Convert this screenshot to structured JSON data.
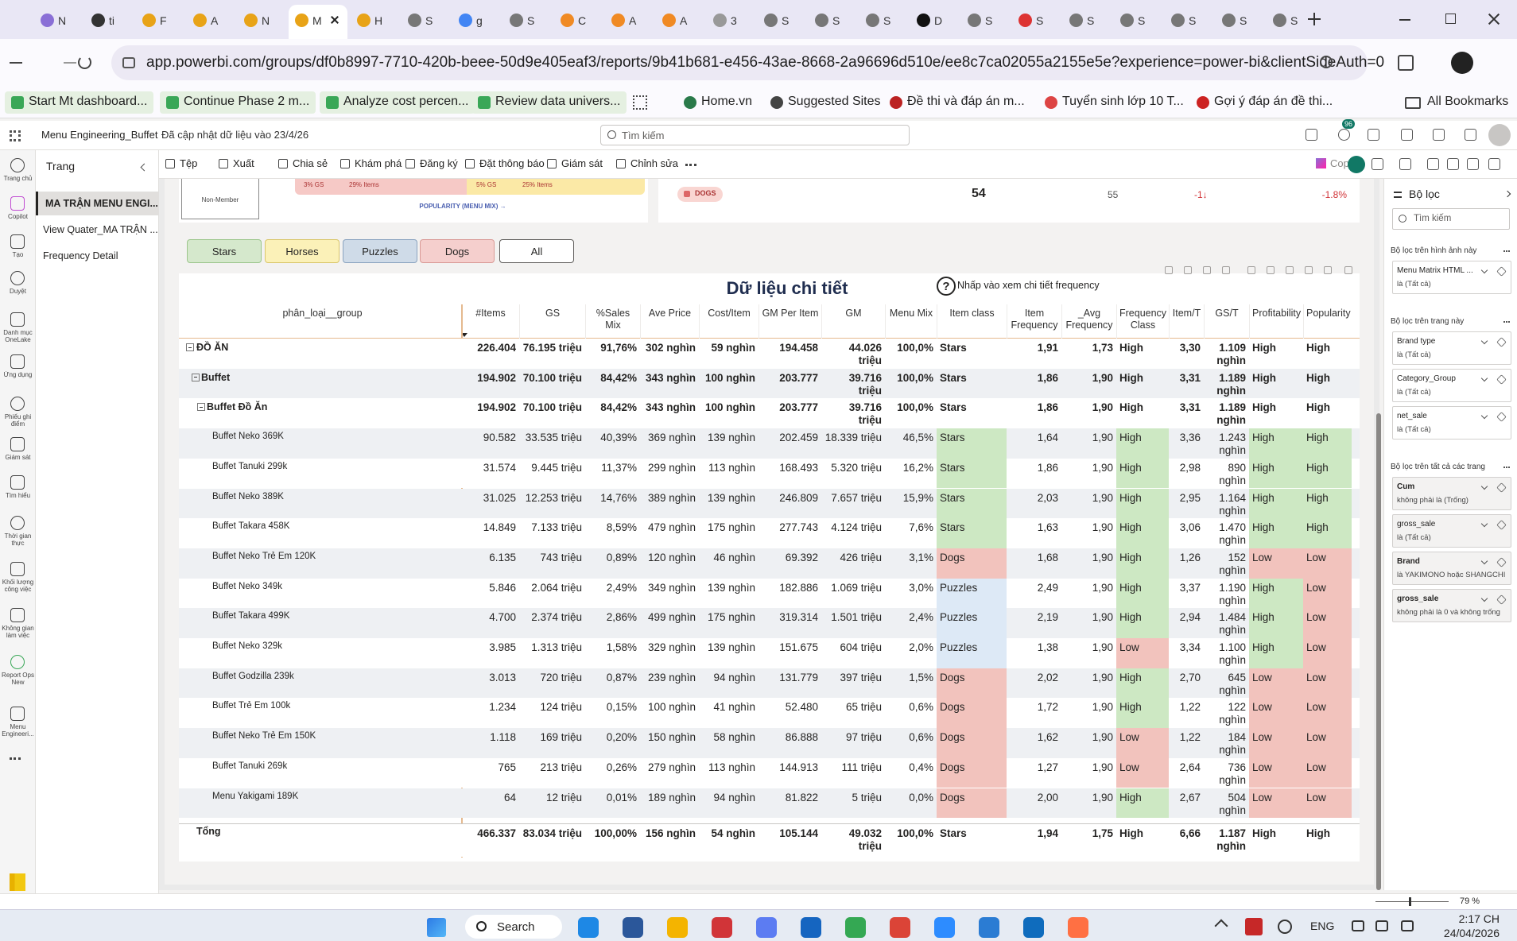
{
  "browser": {
    "tabs": [
      "N",
      "ti",
      "F",
      "A",
      "N",
      "M",
      "H",
      "S",
      "g",
      "S",
      "C",
      "A",
      "A",
      "3",
      "S",
      "S",
      "S",
      "D",
      "S",
      "S",
      "S",
      "S",
      "S",
      "S",
      "S"
    ],
    "url": "app.powerbi.com/groups/df0b8997-7710-420b-beee-50d9e405eaf3/reports/9b41b681-e456-43ae-8668-2a96696d510e/ee8c7ca02055a2155e5e?experience=power-bi&clientSideAuth=0",
    "bookmarks": [
      "Start Mt dashboard...",
      "Continue Phase 2 m...",
      "Analyze cost percen...",
      "Review data univers...",
      "Home.vn",
      "Suggested Sites",
      "Đề thi và đáp án m...",
      "Tuyển sinh lớp 10 T...",
      "Gợi ý đáp án đề thi..."
    ],
    "all_bookmarks": "All Bookmarks"
  },
  "app": {
    "report_name": "Menu Engineering_Buffet",
    "updated": "Đã cập nhật dữ liệu vào 23/4/26",
    "search": "Tìm kiếm",
    "notification_count": 96,
    "rail": [
      "Trang chủ",
      "Copilot",
      "Tạo",
      "Duyệt",
      "Danh mục OneLake",
      "Ứng dụng",
      "Phiếu ghi điểm",
      "Giám sát",
      "Tìm hiểu",
      "Thời gian thực",
      "Khối lượng công việc",
      "Không gian làm việc",
      "Report Ops New",
      "Menu Engineeri..."
    ],
    "product": "Power BI",
    "pages_title": "Trang",
    "pages": [
      "MA TRẬN MENU ENGI...",
      "View Quater_MA TRẬN ...",
      "Frequency Detail"
    ],
    "toolbar": [
      "Tệp",
      "Xuất",
      "Chia sẻ",
      "Khám phá",
      "Đăng ký",
      "Đặt thông báo",
      "Giám sát",
      "Chỉnh sửa"
    ],
    "copilot": "Copilot"
  },
  "visual_top": {
    "member": "Non-Member",
    "labels": [
      "3% GS",
      "29% Items",
      "5% GS",
      "25% Items"
    ],
    "axis": "POPULARITY (MENU MIX) →",
    "kpi": {
      "label": "DOGS",
      "value": 54,
      "previous": 55,
      "delta": "-1↓",
      "percent": "-1.8%"
    }
  },
  "buttons": [
    "Stars",
    "Horses",
    "Puzzles",
    "Dogs",
    "All"
  ],
  "table": {
    "title": "Dữ liệu chi tiết",
    "help_icon": "?",
    "hint": "Nhấp vào xem chi tiết frequency",
    "columns": [
      "phân_loại__group",
      "#Items",
      "GS",
      "%Sales Mix",
      "Ave Price",
      "Cost/Item",
      "GM Per Item",
      "GM",
      "Menu Mix",
      "Item class",
      "Item Frequency",
      "_Avg Frequency",
      "Frequency Class",
      "Item/T",
      "GS/T",
      "Profitability",
      "Popularity"
    ],
    "cell_colors": {
      "Stars": "#cde8c3",
      "Dogs": "#f2c3bd",
      "Puzzles": "#dde9f6",
      "High": "#cde8c3",
      "Low": "#f2c3bd"
    },
    "rows": [
      {
        "label": "ĐỒ ĂN",
        "level": 0,
        "cells": [
          "226.404",
          "76.195 triệu",
          "91,76%",
          "302 nghìn",
          "59 nghìn",
          "194.458",
          "44.026 triệu",
          "100,0%",
          "Stars",
          "1,91",
          "1,73",
          "High",
          "3,30",
          "1.109 nghìn",
          "High",
          "High"
        ]
      },
      {
        "label": "Buffet",
        "level": 1,
        "cells": [
          "194.902",
          "70.100 triệu",
          "84,42%",
          "343 nghìn",
          "100 nghìn",
          "203.777",
          "39.716 triệu",
          "100,0%",
          "Stars",
          "1,86",
          "1,90",
          "High",
          "3,31",
          "1.189 nghìn",
          "High",
          "High"
        ]
      },
      {
        "label": "Buffet Đồ Ăn",
        "level": 2,
        "cells": [
          "194.902",
          "70.100 triệu",
          "84,42%",
          "343 nghìn",
          "100 nghìn",
          "203.777",
          "39.716 triệu",
          "100,0%",
          "Stars",
          "1,86",
          "1,90",
          "High",
          "3,31",
          "1.189 nghìn",
          "High",
          "High"
        ]
      },
      {
        "label": "Buffet Neko 369K",
        "level": 3,
        "cells": [
          "90.582",
          "33.535 triệu",
          "40,39%",
          "369 nghìn",
          "139 nghìn",
          "202.459",
          "18.339 triệu",
          "46,5%",
          "Stars",
          "1,64",
          "1,90",
          "High",
          "3,36",
          "1.243 nghìn",
          "High",
          "High"
        ]
      },
      {
        "label": "Buffet Tanuki 299k",
        "level": 3,
        "cells": [
          "31.574",
          "9.445 triệu",
          "11,37%",
          "299 nghìn",
          "113 nghìn",
          "168.493",
          "5.320 triệu",
          "16,2%",
          "Stars",
          "1,86",
          "1,90",
          "High",
          "2,98",
          "890 nghìn",
          "High",
          "High"
        ]
      },
      {
        "label": "Buffet Neko 389K",
        "level": 3,
        "cells": [
          "31.025",
          "12.253 triệu",
          "14,76%",
          "389 nghìn",
          "139 nghìn",
          "246.809",
          "7.657 triệu",
          "15,9%",
          "Stars",
          "2,03",
          "1,90",
          "High",
          "2,95",
          "1.164 nghìn",
          "High",
          "High"
        ]
      },
      {
        "label": "Buffet Takara 458K",
        "level": 3,
        "cells": [
          "14.849",
          "7.133 triệu",
          "8,59%",
          "479 nghìn",
          "175 nghìn",
          "277.743",
          "4.124 triệu",
          "7,6%",
          "Stars",
          "1,63",
          "1,90",
          "High",
          "3,06",
          "1.470 nghìn",
          "High",
          "High"
        ]
      },
      {
        "label": "Buffet Neko Trẻ Em 120K",
        "level": 3,
        "cells": [
          "6.135",
          "743 triệu",
          "0,89%",
          "120 nghìn",
          "46 nghìn",
          "69.392",
          "426 triệu",
          "3,1%",
          "Dogs",
          "1,68",
          "1,90",
          "High",
          "1,26",
          "152 nghìn",
          "Low",
          "Low"
        ]
      },
      {
        "label": "Buffet Neko 349k",
        "level": 3,
        "cells": [
          "5.846",
          "2.064 triệu",
          "2,49%",
          "349 nghìn",
          "139 nghìn",
          "182.886",
          "1.069 triệu",
          "3,0%",
          "Puzzles",
          "2,49",
          "1,90",
          "High",
          "3,37",
          "1.190 nghìn",
          "High",
          "Low"
        ]
      },
      {
        "label": "Buffet Takara 499K",
        "level": 3,
        "cells": [
          "4.700",
          "2.374 triệu",
          "2,86%",
          "499 nghìn",
          "175 nghìn",
          "319.314",
          "1.501 triệu",
          "2,4%",
          "Puzzles",
          "2,19",
          "1,90",
          "High",
          "2,94",
          "1.484 nghìn",
          "High",
          "Low"
        ]
      },
      {
        "label": "Buffet Neko 329k",
        "level": 3,
        "cells": [
          "3.985",
          "1.313 triệu",
          "1,58%",
          "329 nghìn",
          "139 nghìn",
          "151.675",
          "604 triệu",
          "2,0%",
          "Puzzles",
          "1,38",
          "1,90",
          "Low",
          "3,34",
          "1.100 nghìn",
          "High",
          "Low"
        ]
      },
      {
        "label": "Buffet Godzilla 239k",
        "level": 3,
        "cells": [
          "3.013",
          "720 triệu",
          "0,87%",
          "239 nghìn",
          "94 nghìn",
          "131.779",
          "397 triệu",
          "1,5%",
          "Dogs",
          "2,02",
          "1,90",
          "High",
          "2,70",
          "645 nghìn",
          "Low",
          "Low"
        ]
      },
      {
        "label": "Buffet Trẻ Em 100k",
        "level": 3,
        "cells": [
          "1.234",
          "124 triệu",
          "0,15%",
          "100 nghìn",
          "41 nghìn",
          "52.480",
          "65 triệu",
          "0,6%",
          "Dogs",
          "1,72",
          "1,90",
          "High",
          "1,22",
          "122 nghìn",
          "Low",
          "Low"
        ]
      },
      {
        "label": "Buffet Neko Trẻ Em 150K",
        "level": 3,
        "cells": [
          "1.118",
          "169 triệu",
          "0,20%",
          "150 nghìn",
          "58 nghìn",
          "86.888",
          "97 triệu",
          "0,6%",
          "Dogs",
          "1,62",
          "1,90",
          "Low",
          "1,22",
          "184 nghìn",
          "Low",
          "Low"
        ]
      },
      {
        "label": "Buffet Tanuki 269k",
        "level": 3,
        "cells": [
          "765",
          "213 triệu",
          "0,26%",
          "279 nghìn",
          "113 nghìn",
          "144.913",
          "111 triệu",
          "0,4%",
          "Dogs",
          "1,27",
          "1,90",
          "Low",
          "2,64",
          "736 nghìn",
          "Low",
          "Low"
        ]
      },
      {
        "label": "Menu Yakigami 189K",
        "level": 3,
        "cells": [
          "64",
          "12 triệu",
          "0,01%",
          "189 nghìn",
          "94 nghìn",
          "81.822",
          "5 triệu",
          "0,0%",
          "Dogs",
          "2,00",
          "1,90",
          "High",
          "2,67",
          "504 nghìn",
          "Low",
          "Low"
        ]
      }
    ],
    "total": {
      "label": "Tổng",
      "cells": [
        "466.337",
        "83.034 triệu",
        "100,00%",
        "156 nghìn",
        "54 nghìn",
        "105.144",
        "49.032 triệu",
        "100,0%",
        "Stars",
        "1,94",
        "1,75",
        "High",
        "6,66",
        "1.187 nghìn",
        "High",
        "High"
      ]
    }
  },
  "filters": {
    "title": "Bộ lọc",
    "search": "Tìm kiếm",
    "sections": [
      {
        "title": "Bộ lọc trên hình ảnh này",
        "cards": [
          {
            "name": "Menu Matrix HTML ...",
            "state": "là (Tất cả)"
          }
        ]
      },
      {
        "title": "Bộ lọc trên trang này",
        "cards": [
          {
            "name": "Brand type",
            "state": "là (Tất cả)"
          },
          {
            "name": "Category_Group",
            "state": "là (Tất cả)"
          },
          {
            "name": "net_sale",
            "state": "là (Tất cả)"
          }
        ]
      },
      {
        "title": "Bộ lọc trên tất cả các trang",
        "cards": [
          {
            "name": "Cum",
            "state": "không phải là (Trống)"
          },
          {
            "name": "gross_sale",
            "state": "là (Tất cả)"
          },
          {
            "name": "Brand",
            "state": "là YAKIMONO hoặc SHANGCHI"
          },
          {
            "name": "gross_sale",
            "state": "không phải là 0 và không trống"
          }
        ]
      }
    ]
  },
  "status": {
    "zoom": "79 %"
  },
  "taskbar": {
    "search": "Search",
    "language": "ENG",
    "time": "2:17 CH",
    "date": "24/04/2026"
  }
}
